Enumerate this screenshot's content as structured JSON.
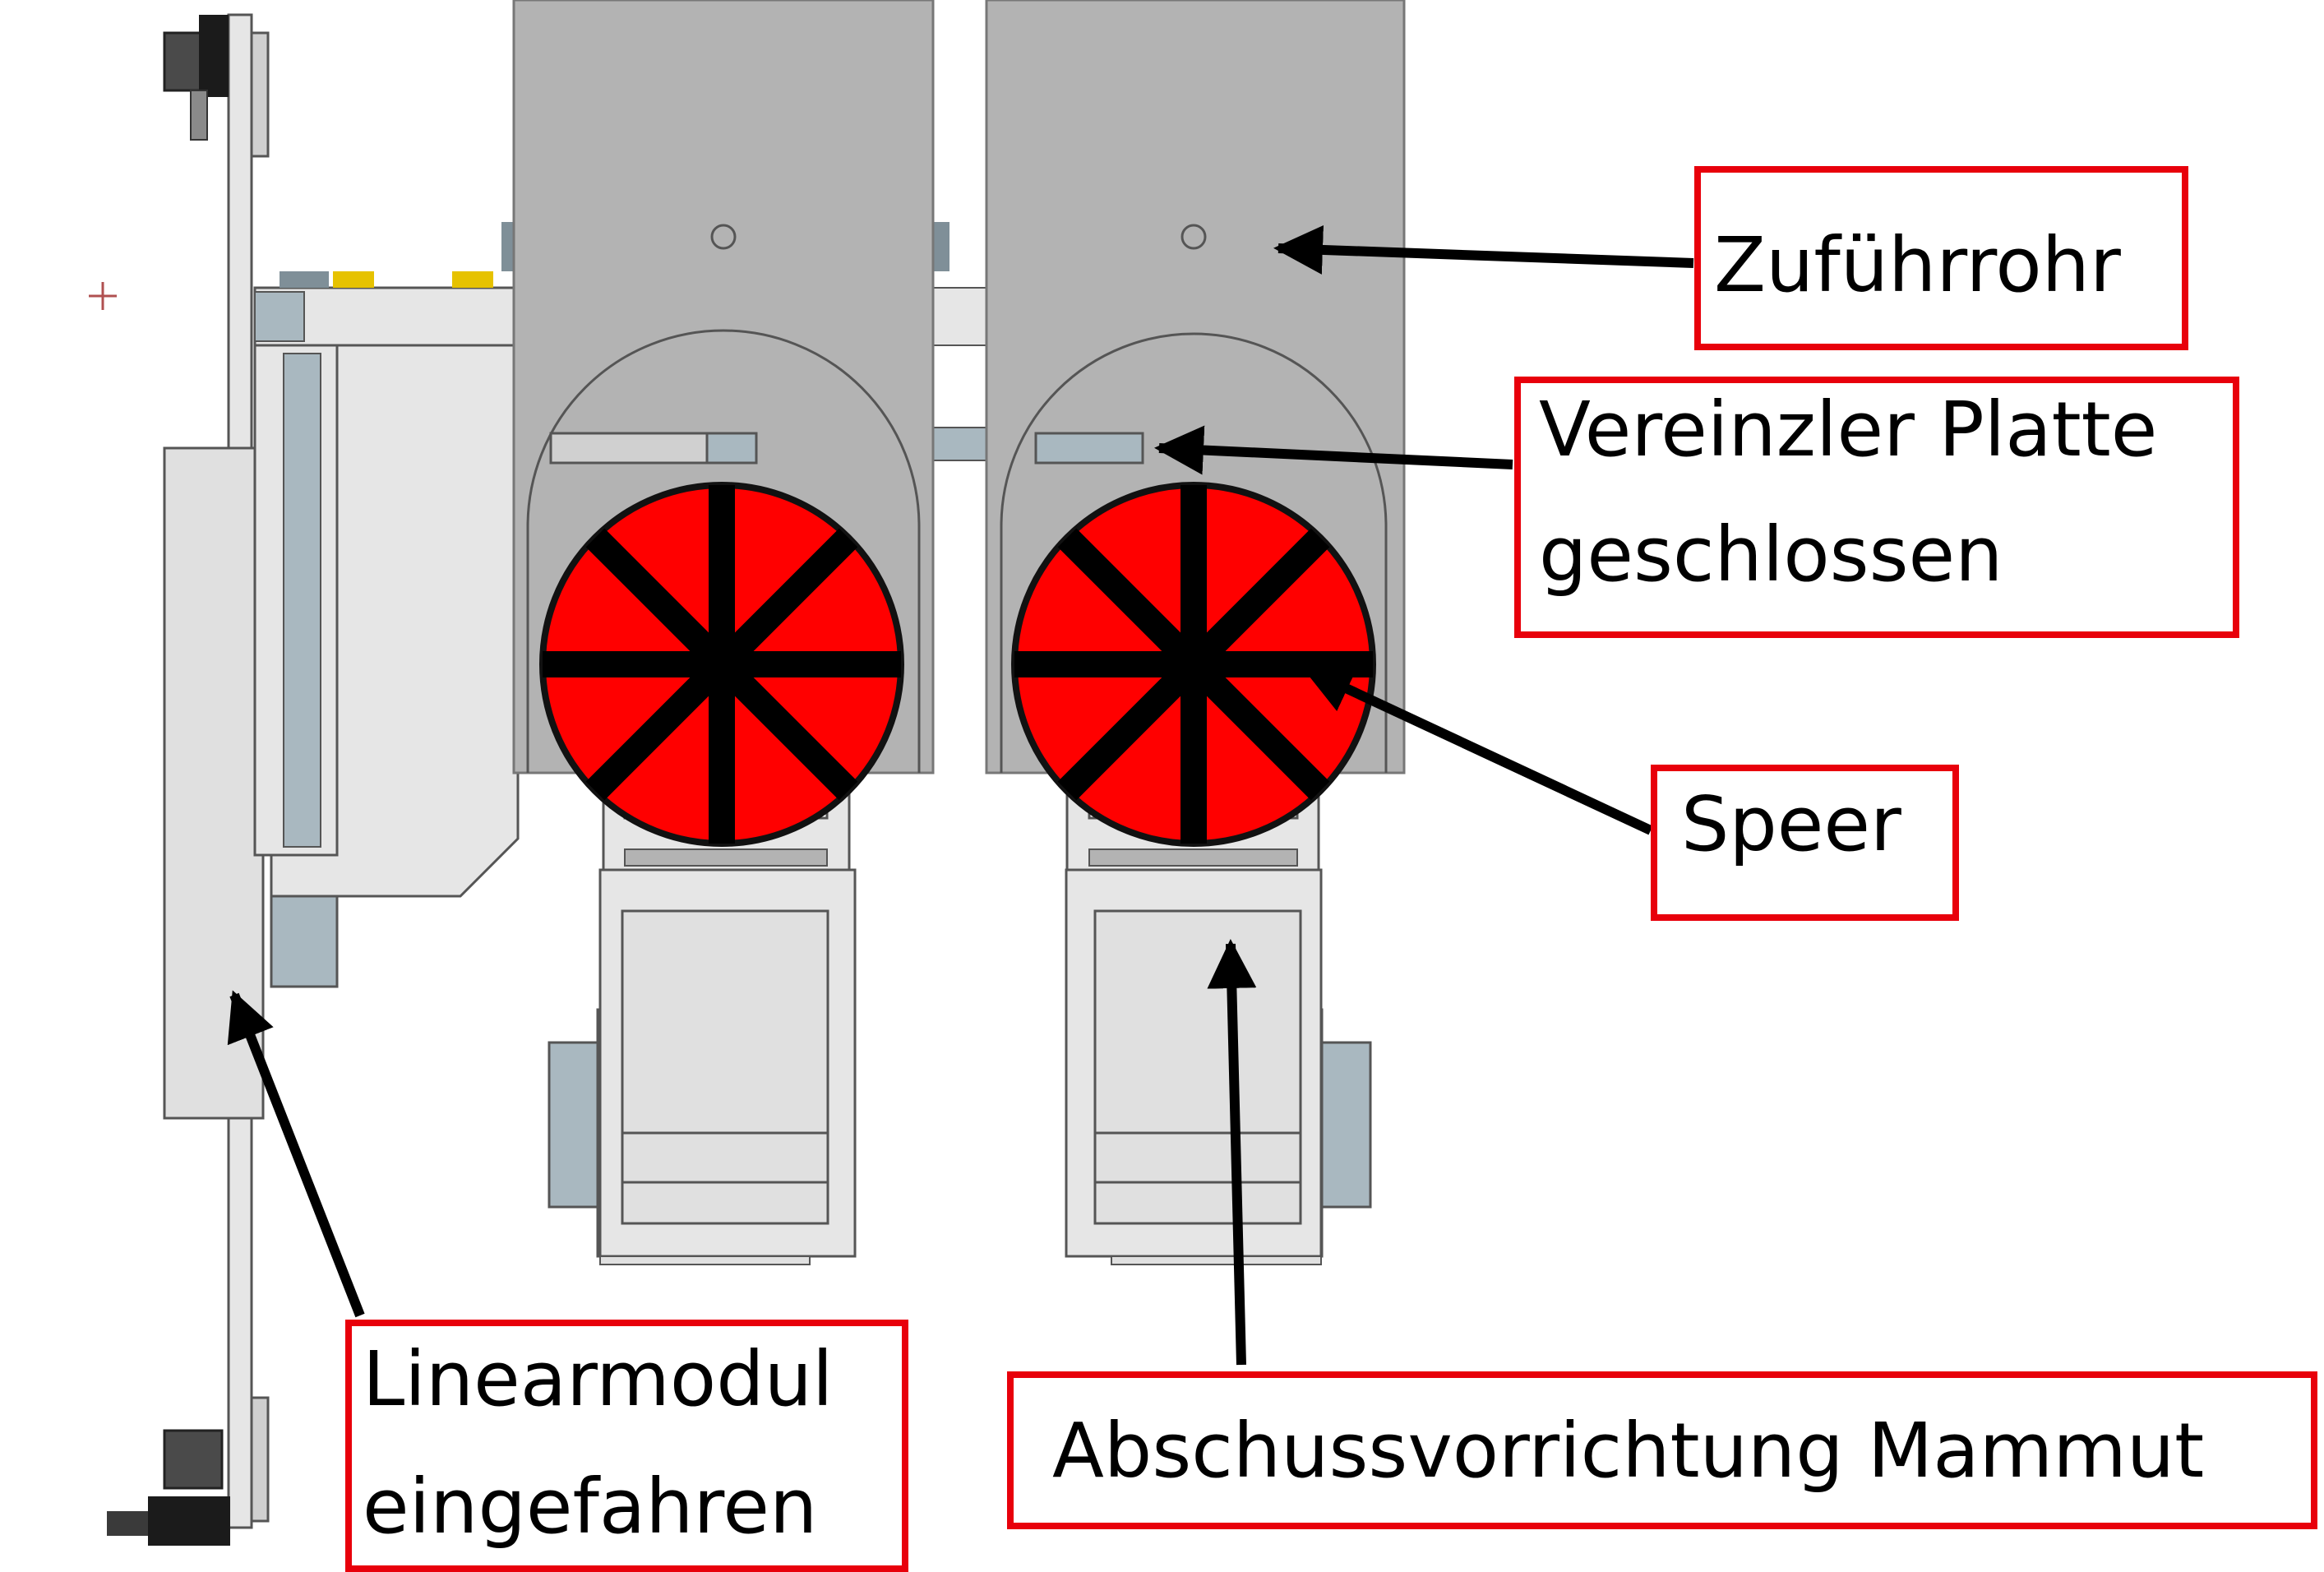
{
  "labels": {
    "feed_tube": "Zuführrohr",
    "separator_line1": "Vereinzler Platte",
    "separator_line2": "geschlossen",
    "spear": "Speer",
    "linear_line1": "Linearmodul",
    "linear_line2": "eingefahren",
    "launcher": "Abschussvorrichtung Mammut"
  },
  "colors": {
    "box_border": "#e8000b",
    "spear_fill": "#ff0000",
    "tube": "#b3b3b3",
    "part_light": "#e0e0e0",
    "part_blue": "#a9b8c0",
    "arrow": "#000000"
  }
}
